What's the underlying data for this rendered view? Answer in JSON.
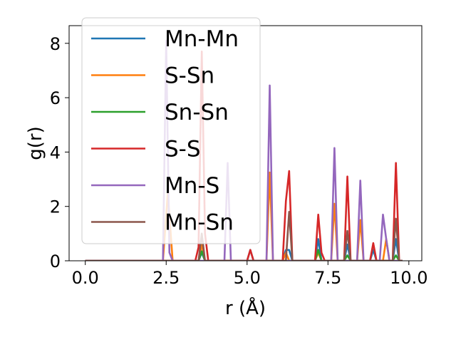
{
  "chart_data": {
    "type": "line",
    "xlabel": "r (Å)",
    "ylabel": "g(r)",
    "xlim": [
      -0.5,
      10.4
    ],
    "ylim": [
      0,
      8.65
    ],
    "xticks": [
      0.0,
      2.5,
      5.0,
      7.5,
      10.0
    ],
    "xtick_labels": [
      "0.0",
      "2.5",
      "5.0",
      "7.5",
      "10.0"
    ],
    "yticks": [
      0,
      2,
      4,
      6,
      8
    ],
    "ytick_labels": [
      "0",
      "2",
      "4",
      "6",
      "8"
    ],
    "grid": false,
    "legend_position": "upper-left",
    "series": [
      {
        "name": "Mn-Mn",
        "color": "#1f77b4",
        "points": [
          [
            0,
            0
          ],
          [
            3.5,
            0
          ],
          [
            3.6,
            0.3
          ],
          [
            3.7,
            0
          ],
          [
            5.0,
            0
          ],
          [
            5.1,
            0.4
          ],
          [
            5.2,
            0
          ],
          [
            6.1,
            0
          ],
          [
            6.2,
            0.4
          ],
          [
            6.3,
            0.4
          ],
          [
            6.4,
            0
          ],
          [
            7.1,
            0
          ],
          [
            7.2,
            0.8
          ],
          [
            7.3,
            0
          ],
          [
            8.0,
            0
          ],
          [
            8.1,
            0.6
          ],
          [
            8.2,
            0
          ],
          [
            8.8,
            0
          ],
          [
            8.9,
            0.4
          ],
          [
            9.0,
            0
          ],
          [
            9.5,
            0
          ],
          [
            9.6,
            0.8
          ],
          [
            9.7,
            0
          ],
          [
            9.8,
            0
          ]
        ]
      },
      {
        "name": "S-Sn",
        "color": "#ff7f0e",
        "points": [
          [
            0,
            0
          ],
          [
            2.4,
            0
          ],
          [
            2.55,
            2.5
          ],
          [
            2.7,
            0
          ],
          [
            3.5,
            0
          ],
          [
            3.6,
            0.6
          ],
          [
            3.7,
            0
          ],
          [
            5.6,
            0
          ],
          [
            5.7,
            3.25
          ],
          [
            5.8,
            0
          ],
          [
            6.1,
            0
          ],
          [
            6.2,
            0.3
          ],
          [
            6.3,
            0
          ],
          [
            7.1,
            0
          ],
          [
            7.2,
            0.3
          ],
          [
            7.3,
            0
          ],
          [
            7.6,
            0
          ],
          [
            7.7,
            2.1
          ],
          [
            7.8,
            0
          ],
          [
            8.4,
            0
          ],
          [
            8.5,
            1.5
          ],
          [
            8.6,
            0
          ],
          [
            9.2,
            0
          ],
          [
            9.3,
            0.8
          ],
          [
            9.4,
            0
          ],
          [
            9.8,
            0
          ]
        ]
      },
      {
        "name": "Sn-Sn",
        "color": "#2ca02c",
        "points": [
          [
            0,
            0
          ],
          [
            3.5,
            0
          ],
          [
            3.6,
            0.35
          ],
          [
            3.7,
            0
          ],
          [
            7.1,
            0
          ],
          [
            7.2,
            0.4
          ],
          [
            7.3,
            0
          ],
          [
            8.0,
            0
          ],
          [
            8.1,
            0.2
          ],
          [
            8.2,
            0
          ],
          [
            9.5,
            0
          ],
          [
            9.6,
            0.2
          ],
          [
            9.7,
            0
          ],
          [
            9.8,
            0
          ]
        ]
      },
      {
        "name": "S-S",
        "color": "#d62728",
        "points": [
          [
            0,
            0
          ],
          [
            3.4,
            0
          ],
          [
            3.5,
            0.5
          ],
          [
            3.6,
            7.7
          ],
          [
            3.7,
            1.0
          ],
          [
            3.8,
            0
          ],
          [
            5.0,
            0
          ],
          [
            5.1,
            0.4
          ],
          [
            5.2,
            0
          ],
          [
            6.1,
            0
          ],
          [
            6.2,
            2.2
          ],
          [
            6.3,
            3.3
          ],
          [
            6.4,
            0
          ],
          [
            7.1,
            0
          ],
          [
            7.2,
            1.7
          ],
          [
            7.3,
            0.3
          ],
          [
            7.4,
            0
          ],
          [
            8.0,
            0
          ],
          [
            8.1,
            3.1
          ],
          [
            8.2,
            0
          ],
          [
            8.8,
            0
          ],
          [
            8.9,
            0.65
          ],
          [
            9.0,
            0
          ],
          [
            9.5,
            0
          ],
          [
            9.6,
            3.6
          ],
          [
            9.7,
            0
          ],
          [
            9.8,
            0
          ]
        ]
      },
      {
        "name": "Mn-S",
        "color": "#9467bd",
        "points": [
          [
            0,
            0
          ],
          [
            2.4,
            0
          ],
          [
            2.5,
            8.1
          ],
          [
            2.6,
            0.3
          ],
          [
            2.7,
            0
          ],
          [
            4.3,
            0
          ],
          [
            4.4,
            3.6
          ],
          [
            4.5,
            0
          ],
          [
            5.6,
            0
          ],
          [
            5.7,
            6.45
          ],
          [
            5.8,
            0
          ],
          [
            7.6,
            0
          ],
          [
            7.7,
            4.15
          ],
          [
            7.8,
            0
          ],
          [
            8.4,
            0
          ],
          [
            8.5,
            2.95
          ],
          [
            8.6,
            0
          ],
          [
            9.1,
            0
          ],
          [
            9.2,
            1.7
          ],
          [
            9.3,
            0.8
          ],
          [
            9.4,
            0
          ],
          [
            9.8,
            0
          ]
        ]
      },
      {
        "name": "Mn-Sn",
        "color": "#8c564b",
        "points": [
          [
            0,
            0
          ],
          [
            3.5,
            0
          ],
          [
            3.6,
            1.0
          ],
          [
            3.7,
            0
          ],
          [
            6.2,
            0
          ],
          [
            6.3,
            1.8
          ],
          [
            6.4,
            0
          ],
          [
            8.0,
            0
          ],
          [
            8.1,
            1.1
          ],
          [
            8.2,
            0
          ],
          [
            9.5,
            0
          ],
          [
            9.6,
            1.55
          ],
          [
            9.7,
            0
          ],
          [
            9.8,
            0
          ]
        ]
      }
    ]
  }
}
